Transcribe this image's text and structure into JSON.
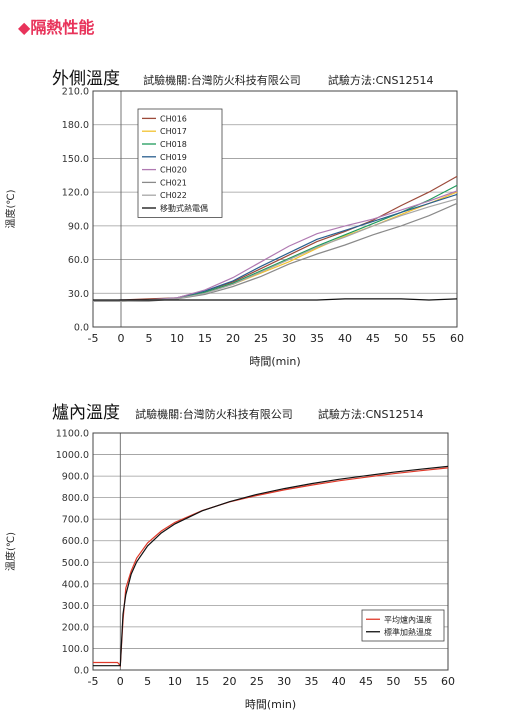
{
  "page": {
    "section_marker": "◆",
    "section_title": "隔熱性能"
  },
  "charts": [
    {
      "title_main": "外側溫度",
      "title_lab": "試驗機關:台灣防火科技有限公司",
      "title_method": "試驗方法:CNS12514"
    },
    {
      "title_main": "爐內溫度",
      "title_lab": "試驗機關:台灣防火科技有限公司",
      "title_method": "試驗方法:CNS12514"
    }
  ],
  "chart_data": [
    {
      "type": "line",
      "title": "外側溫度",
      "xlabel": "時間(min)",
      "ylabel": "溫度(℃)",
      "xlim": [
        -5,
        60
      ],
      "ylim": [
        0,
        210
      ],
      "xticks": [
        -5,
        0,
        5,
        10,
        15,
        20,
        25,
        30,
        35,
        40,
        45,
        50,
        55,
        60
      ],
      "yticks": [
        "0.0",
        "30.0",
        "60.0",
        "90.0",
        "120.0",
        "150.0",
        "180.0",
        "210.0"
      ],
      "grid": "horizontal",
      "legend": "top-left",
      "series": [
        {
          "name": "CH016",
          "color": "#9c4a3a",
          "x": [
            -5,
            0,
            5,
            10,
            15,
            20,
            25,
            30,
            35,
            40,
            45,
            50,
            55,
            60
          ],
          "y": [
            23,
            24,
            25,
            26,
            32,
            40,
            52,
            64,
            76,
            85,
            95,
            108,
            120,
            134
          ]
        },
        {
          "name": "CH017",
          "color": "#f2c230",
          "x": [
            -5,
            0,
            5,
            10,
            15,
            20,
            25,
            30,
            35,
            40,
            45,
            50,
            55,
            60
          ],
          "y": [
            23,
            23,
            24,
            25,
            31,
            38,
            48,
            58,
            70,
            81,
            90,
            100,
            110,
            120
          ]
        },
        {
          "name": "CH018",
          "color": "#1f9a5c",
          "x": [
            -5,
            0,
            5,
            10,
            15,
            20,
            25,
            30,
            35,
            40,
            45,
            50,
            55,
            60
          ],
          "y": [
            23,
            23,
            24,
            25,
            31,
            39,
            50,
            61,
            72,
            82,
            92,
            102,
            113,
            126
          ]
        },
        {
          "name": "CH019",
          "color": "#2a5f8f",
          "x": [
            -5,
            0,
            5,
            10,
            15,
            20,
            25,
            30,
            35,
            40,
            45,
            50,
            55,
            60
          ],
          "y": [
            23,
            24,
            24,
            26,
            32,
            41,
            54,
            66,
            78,
            86,
            94,
            102,
            110,
            118
          ]
        },
        {
          "name": "CH020",
          "color": "#b07ab2",
          "x": [
            -5,
            0,
            5,
            10,
            15,
            20,
            25,
            30,
            35,
            40,
            45,
            50,
            55,
            60
          ],
          "y": [
            23,
            23,
            24,
            26,
            33,
            44,
            58,
            72,
            83,
            90,
            96,
            104,
            112,
            121
          ]
        },
        {
          "name": "CH021",
          "color": "#8a8a8a",
          "x": [
            -5,
            0,
            5,
            10,
            15,
            20,
            25,
            30,
            35,
            40,
            45,
            50,
            55,
            60
          ],
          "y": [
            23,
            23,
            23,
            25,
            29,
            36,
            45,
            56,
            65,
            73,
            82,
            90,
            99,
            110
          ]
        },
        {
          "name": "CH022",
          "color": "#a6a6a6",
          "x": [
            -5,
            0,
            5,
            10,
            15,
            20,
            25,
            30,
            35,
            40,
            45,
            50,
            55,
            60
          ],
          "y": [
            23,
            23,
            24,
            25,
            30,
            38,
            49,
            60,
            71,
            80,
            90,
            99,
            107,
            114
          ]
        },
        {
          "name": "移動式熱電偶",
          "color": "#111111",
          "x": [
            -5,
            0,
            5,
            10,
            15,
            20,
            25,
            30,
            35,
            40,
            45,
            50,
            55,
            60
          ],
          "y": [
            24,
            24,
            24,
            24,
            24,
            24,
            24,
            24,
            24,
            25,
            25,
            25,
            24,
            25
          ]
        }
      ]
    },
    {
      "type": "line",
      "title": "爐內溫度",
      "xlabel": "時間(min)",
      "ylabel": "溫度(℃)",
      "xlim": [
        -5,
        60
      ],
      "ylim": [
        0,
        1100
      ],
      "xticks": [
        -5,
        0,
        5,
        10,
        15,
        20,
        25,
        30,
        35,
        40,
        45,
        50,
        55,
        60
      ],
      "yticks": [
        "0.0",
        "100.0",
        "200.0",
        "300.0",
        "400.0",
        "500.0",
        "600.0",
        "700.0",
        "800.0",
        "900.0",
        "1000.0",
        "1100.0"
      ],
      "grid": "horizontal",
      "legend": "bottom-right",
      "series": [
        {
          "name": "平均爐內溫度",
          "color": "#e03a2a",
          "x": [
            -5,
            -0.5,
            0,
            0.5,
            1,
            2,
            3,
            5,
            7.5,
            10,
            15,
            20,
            25,
            30,
            35,
            40,
            45,
            50,
            55,
            60
          ],
          "y": [
            35,
            35,
            20,
            230,
            380,
            460,
            520,
            590,
            645,
            685,
            740,
            780,
            810,
            836,
            858,
            878,
            895,
            911,
            925,
            938
          ]
        },
        {
          "name": "標準加熱溫度",
          "color": "#111111",
          "x": [
            -5,
            -0.5,
            0,
            0.5,
            1,
            2,
            3,
            5,
            7.5,
            10,
            15,
            20,
            25,
            30,
            35,
            40,
            45,
            50,
            55,
            60
          ],
          "y": [
            20,
            20,
            20,
            260,
            349,
            445,
            502,
            576,
            636,
            678,
            739,
            781,
            815,
            842,
            865,
            885,
            902,
            918,
            932,
            945
          ]
        }
      ]
    }
  ]
}
